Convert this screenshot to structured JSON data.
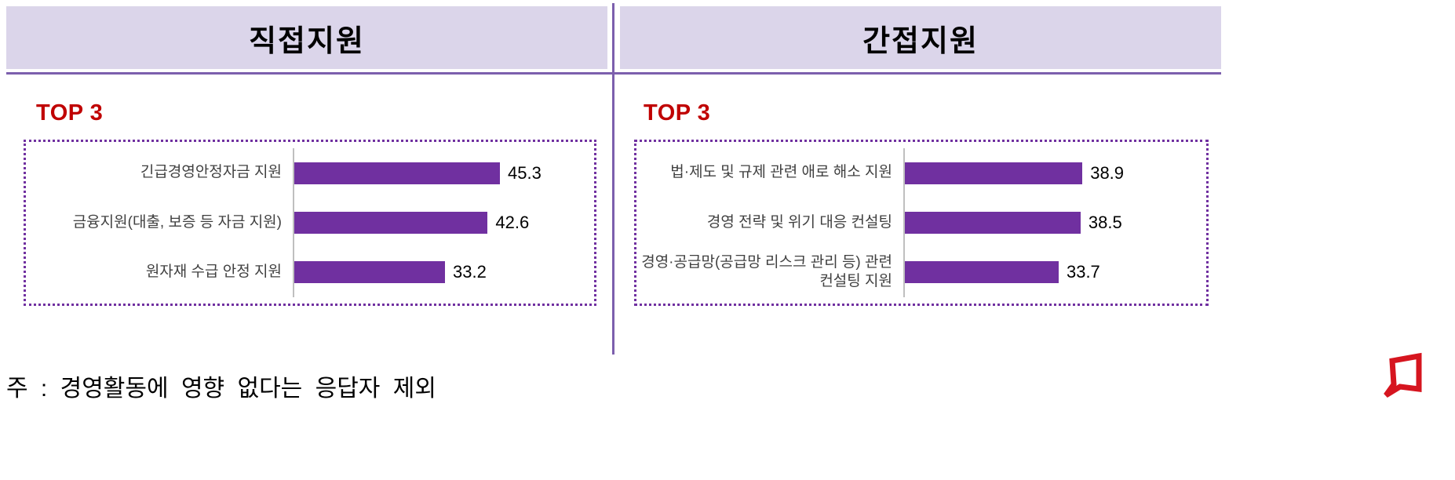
{
  "panels": [
    {
      "title": "직접지원",
      "top_label": "TOP 3"
    },
    {
      "title": "간접지원",
      "top_label": "TOP 3"
    }
  ],
  "chart_data": [
    {
      "type": "bar",
      "orientation": "horizontal",
      "title": "직접지원 TOP 3",
      "categories": [
        "긴급경영안정자금 지원",
        "금융지원(대출, 보증 등 자금 지원)",
        "원자재 수급 안정 지원"
      ],
      "values": [
        45.3,
        42.6,
        33.2
      ],
      "xlim": [
        0,
        65
      ],
      "grid": false,
      "legend": false
    },
    {
      "type": "bar",
      "orientation": "horizontal",
      "title": "간접지원 TOP 3",
      "categories": [
        "법·제도 및 규제 관련 애로 해소 지원",
        "경영 전략 및 위기 대응 컨설팅",
        "경영·공급망(공급망 리스크 관리 등) 관련 컨설팅 지원"
      ],
      "values": [
        38.9,
        38.5,
        33.7
      ],
      "xlim": [
        0,
        65
      ],
      "grid": false,
      "legend": false
    }
  ],
  "footnote": "주 : 경영활동에 영향 없다는 응답자 제외",
  "colors": {
    "header_bg": "#DBD5EA",
    "divider": "#7C5FAD",
    "bar": "#7030A0",
    "top_label_red": "#C00000",
    "dotted_border": "#7030A0",
    "axis_line": "#BFBFBF",
    "logo_red": "#D6151F"
  }
}
